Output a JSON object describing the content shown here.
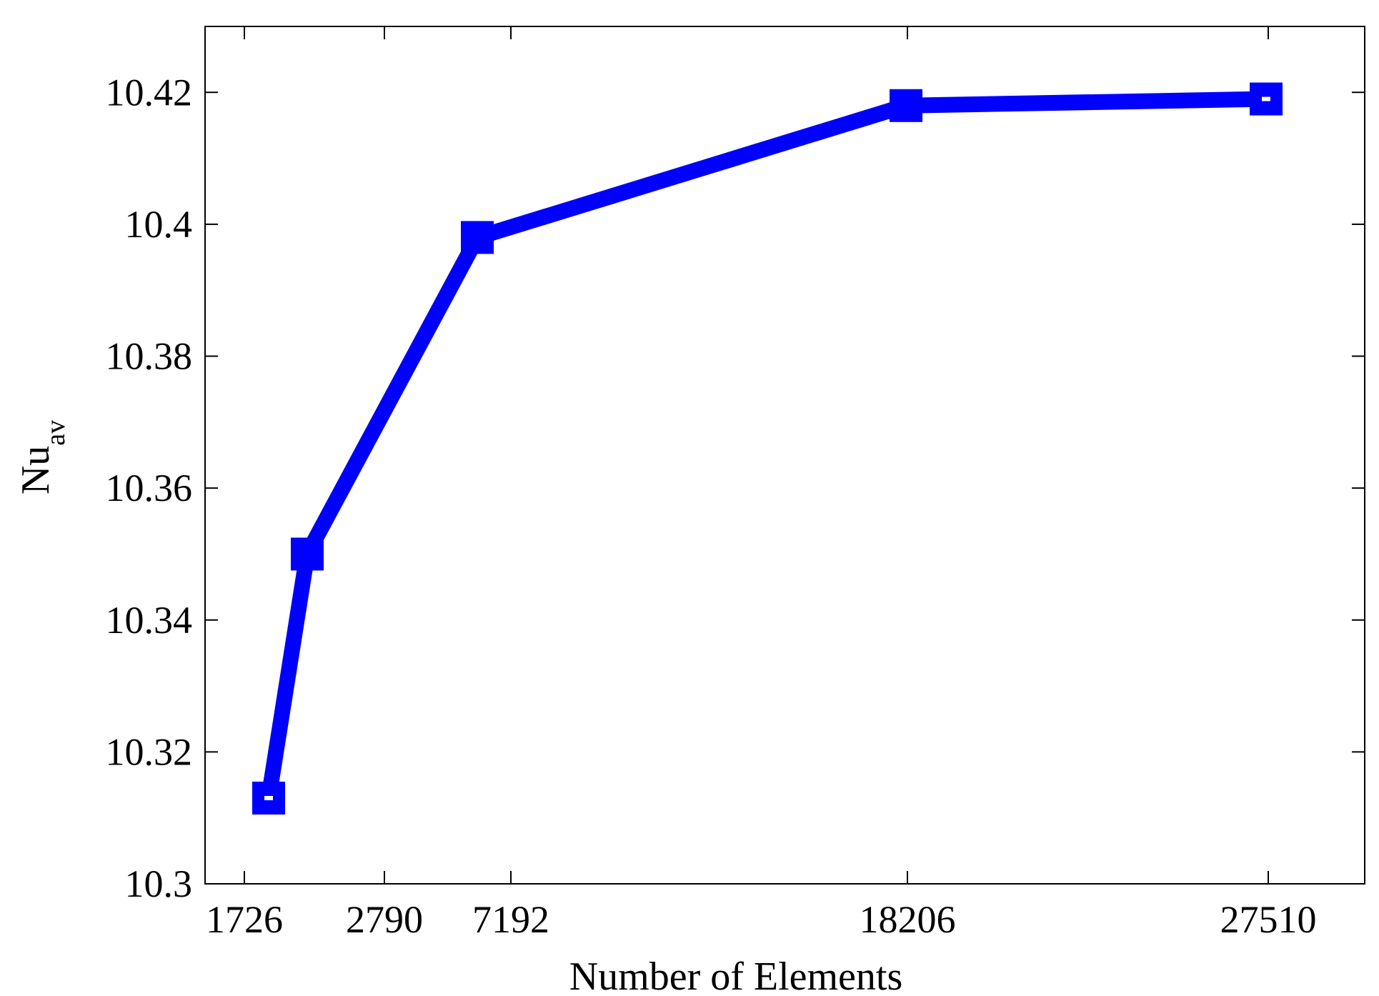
{
  "chart_data": {
    "type": "line",
    "title": "",
    "xlabel": "Number of Elements",
    "ylabel": "Nu",
    "ylabel_subscript": "av",
    "x_tick_labels": [
      "1726",
      "2790",
      "7192",
      "18206",
      "27510"
    ],
    "y_tick_labels": [
      "10.3",
      "10.32",
      "10.34",
      "10.36",
      "10.38",
      "10.4",
      "10.42"
    ],
    "y_ticks": [
      10.3,
      10.32,
      10.34,
      10.36,
      10.38,
      10.4,
      10.42
    ],
    "ylim": [
      10.3,
      10.43
    ],
    "grid": false,
    "legend": null,
    "series": [
      {
        "color": "#0000ff",
        "marker": "square",
        "points": [
          {
            "x": 1726,
            "y": 10.313
          },
          {
            "x": 2790,
            "y": 10.35
          },
          {
            "x": 7192,
            "y": 10.398
          },
          {
            "x": 18206,
            "y": 10.418
          },
          {
            "x": 27510,
            "y": 10.419
          }
        ]
      }
    ]
  }
}
